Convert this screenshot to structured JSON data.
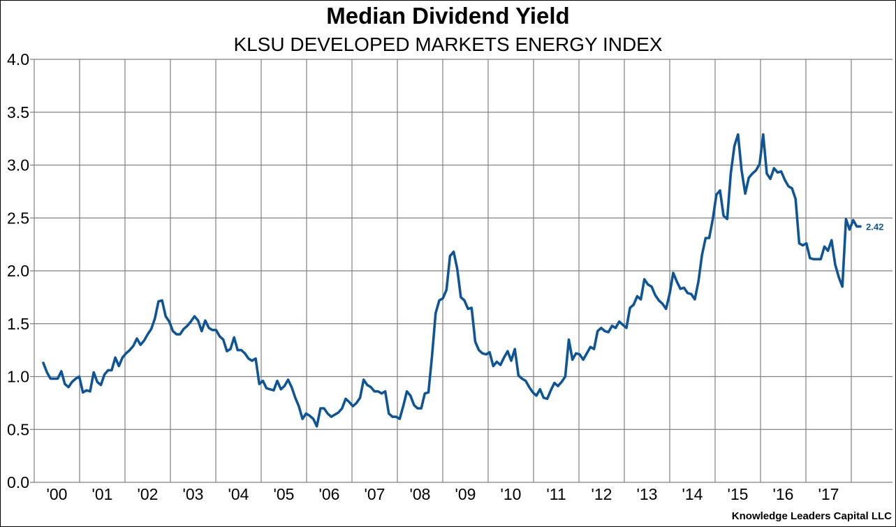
{
  "chart_data": {
    "type": "line",
    "title": "Median Dividend Yield",
    "subtitle": "KLSU DEVELOPED MARKETS ENERGY INDEX",
    "xlabel": "",
    "ylabel": "",
    "ylim": [
      0,
      4.0
    ],
    "yticks": [
      "0.0",
      "0.5",
      "1.0",
      "1.5",
      "2.0",
      "2.5",
      "3.0",
      "3.5",
      "4.0"
    ],
    "ytick_values": [
      0,
      0.5,
      1.0,
      1.5,
      2.0,
      2.5,
      3.0,
      3.5,
      4.0
    ],
    "xticks": [
      "'00",
      "'01",
      "'02",
      "'03",
      "'04",
      "'05",
      "'06",
      "'07",
      "'08",
      "'09",
      "'10",
      "'11",
      "'12",
      "'13",
      "'14",
      "'15",
      "'16",
      "'17"
    ],
    "xlim": [
      2000,
      2018.9
    ],
    "grid": true,
    "legend": "none",
    "series": [
      {
        "name": "Median Dividend Yield",
        "color": "#0f5596",
        "start": 2000.2,
        "end": 2018.2,
        "end_label": "2.42",
        "values": [
          1.13,
          1.04,
          0.98,
          0.98,
          0.98,
          1.05,
          0.93,
          0.9,
          0.95,
          0.98,
          1.0,
          0.85,
          0.87,
          0.86,
          1.04,
          0.95,
          0.92,
          1.02,
          1.06,
          1.06,
          1.18,
          1.1,
          1.18,
          1.22,
          1.25,
          1.29,
          1.36,
          1.3,
          1.34,
          1.4,
          1.45,
          1.55,
          1.71,
          1.72,
          1.57,
          1.52,
          1.43,
          1.4,
          1.4,
          1.45,
          1.48,
          1.52,
          1.57,
          1.53,
          1.43,
          1.53,
          1.46,
          1.44,
          1.44,
          1.38,
          1.35,
          1.24,
          1.26,
          1.37,
          1.25,
          1.25,
          1.22,
          1.17,
          1.15,
          1.17,
          0.93,
          0.96,
          0.89,
          0.88,
          0.87,
          0.96,
          0.88,
          0.91,
          0.97,
          0.9,
          0.8,
          0.72,
          0.6,
          0.65,
          0.63,
          0.6,
          0.53,
          0.7,
          0.7,
          0.65,
          0.62,
          0.64,
          0.66,
          0.7,
          0.79,
          0.76,
          0.72,
          0.75,
          0.8,
          0.97,
          0.92,
          0.9,
          0.86,
          0.86,
          0.84,
          0.86,
          0.65,
          0.62,
          0.62,
          0.6,
          0.72,
          0.86,
          0.82,
          0.73,
          0.7,
          0.7,
          0.84,
          0.85,
          1.2,
          1.6,
          1.72,
          1.74,
          1.82,
          2.14,
          2.18,
          2.02,
          1.75,
          1.72,
          1.64,
          1.65,
          1.33,
          1.25,
          1.22,
          1.21,
          1.23,
          1.1,
          1.14,
          1.11,
          1.18,
          1.24,
          1.15,
          1.26,
          1.01,
          0.98,
          0.96,
          0.9,
          0.85,
          0.82,
          0.88,
          0.8,
          0.79,
          0.87,
          0.94,
          0.91,
          0.95,
          1.0,
          1.35,
          1.16,
          1.22,
          1.21,
          1.16,
          1.22,
          1.28,
          1.26,
          1.43,
          1.46,
          1.43,
          1.42,
          1.48,
          1.46,
          1.52,
          1.49,
          1.46,
          1.65,
          1.68,
          1.76,
          1.73,
          1.92,
          1.87,
          1.85,
          1.77,
          1.72,
          1.69,
          1.64,
          1.78,
          1.98,
          1.9,
          1.83,
          1.84,
          1.79,
          1.78,
          1.73,
          1.9,
          2.15,
          2.31,
          2.31,
          2.49,
          2.72,
          2.76,
          2.52,
          2.49,
          2.92,
          3.18,
          3.29,
          2.95,
          2.73,
          2.88,
          2.92,
          2.95,
          3.01,
          3.29,
          2.92,
          2.87,
          2.97,
          2.93,
          2.94,
          2.86,
          2.8,
          2.78,
          2.68,
          2.26,
          2.24,
          2.26,
          2.12,
          2.11,
          2.11,
          2.11,
          2.23,
          2.19,
          2.29,
          2.06,
          1.94,
          1.85,
          2.49,
          2.39,
          2.48,
          2.42,
          2.42
        ]
      }
    ],
    "credit": "Knowledge Leaders Capital LLC"
  }
}
